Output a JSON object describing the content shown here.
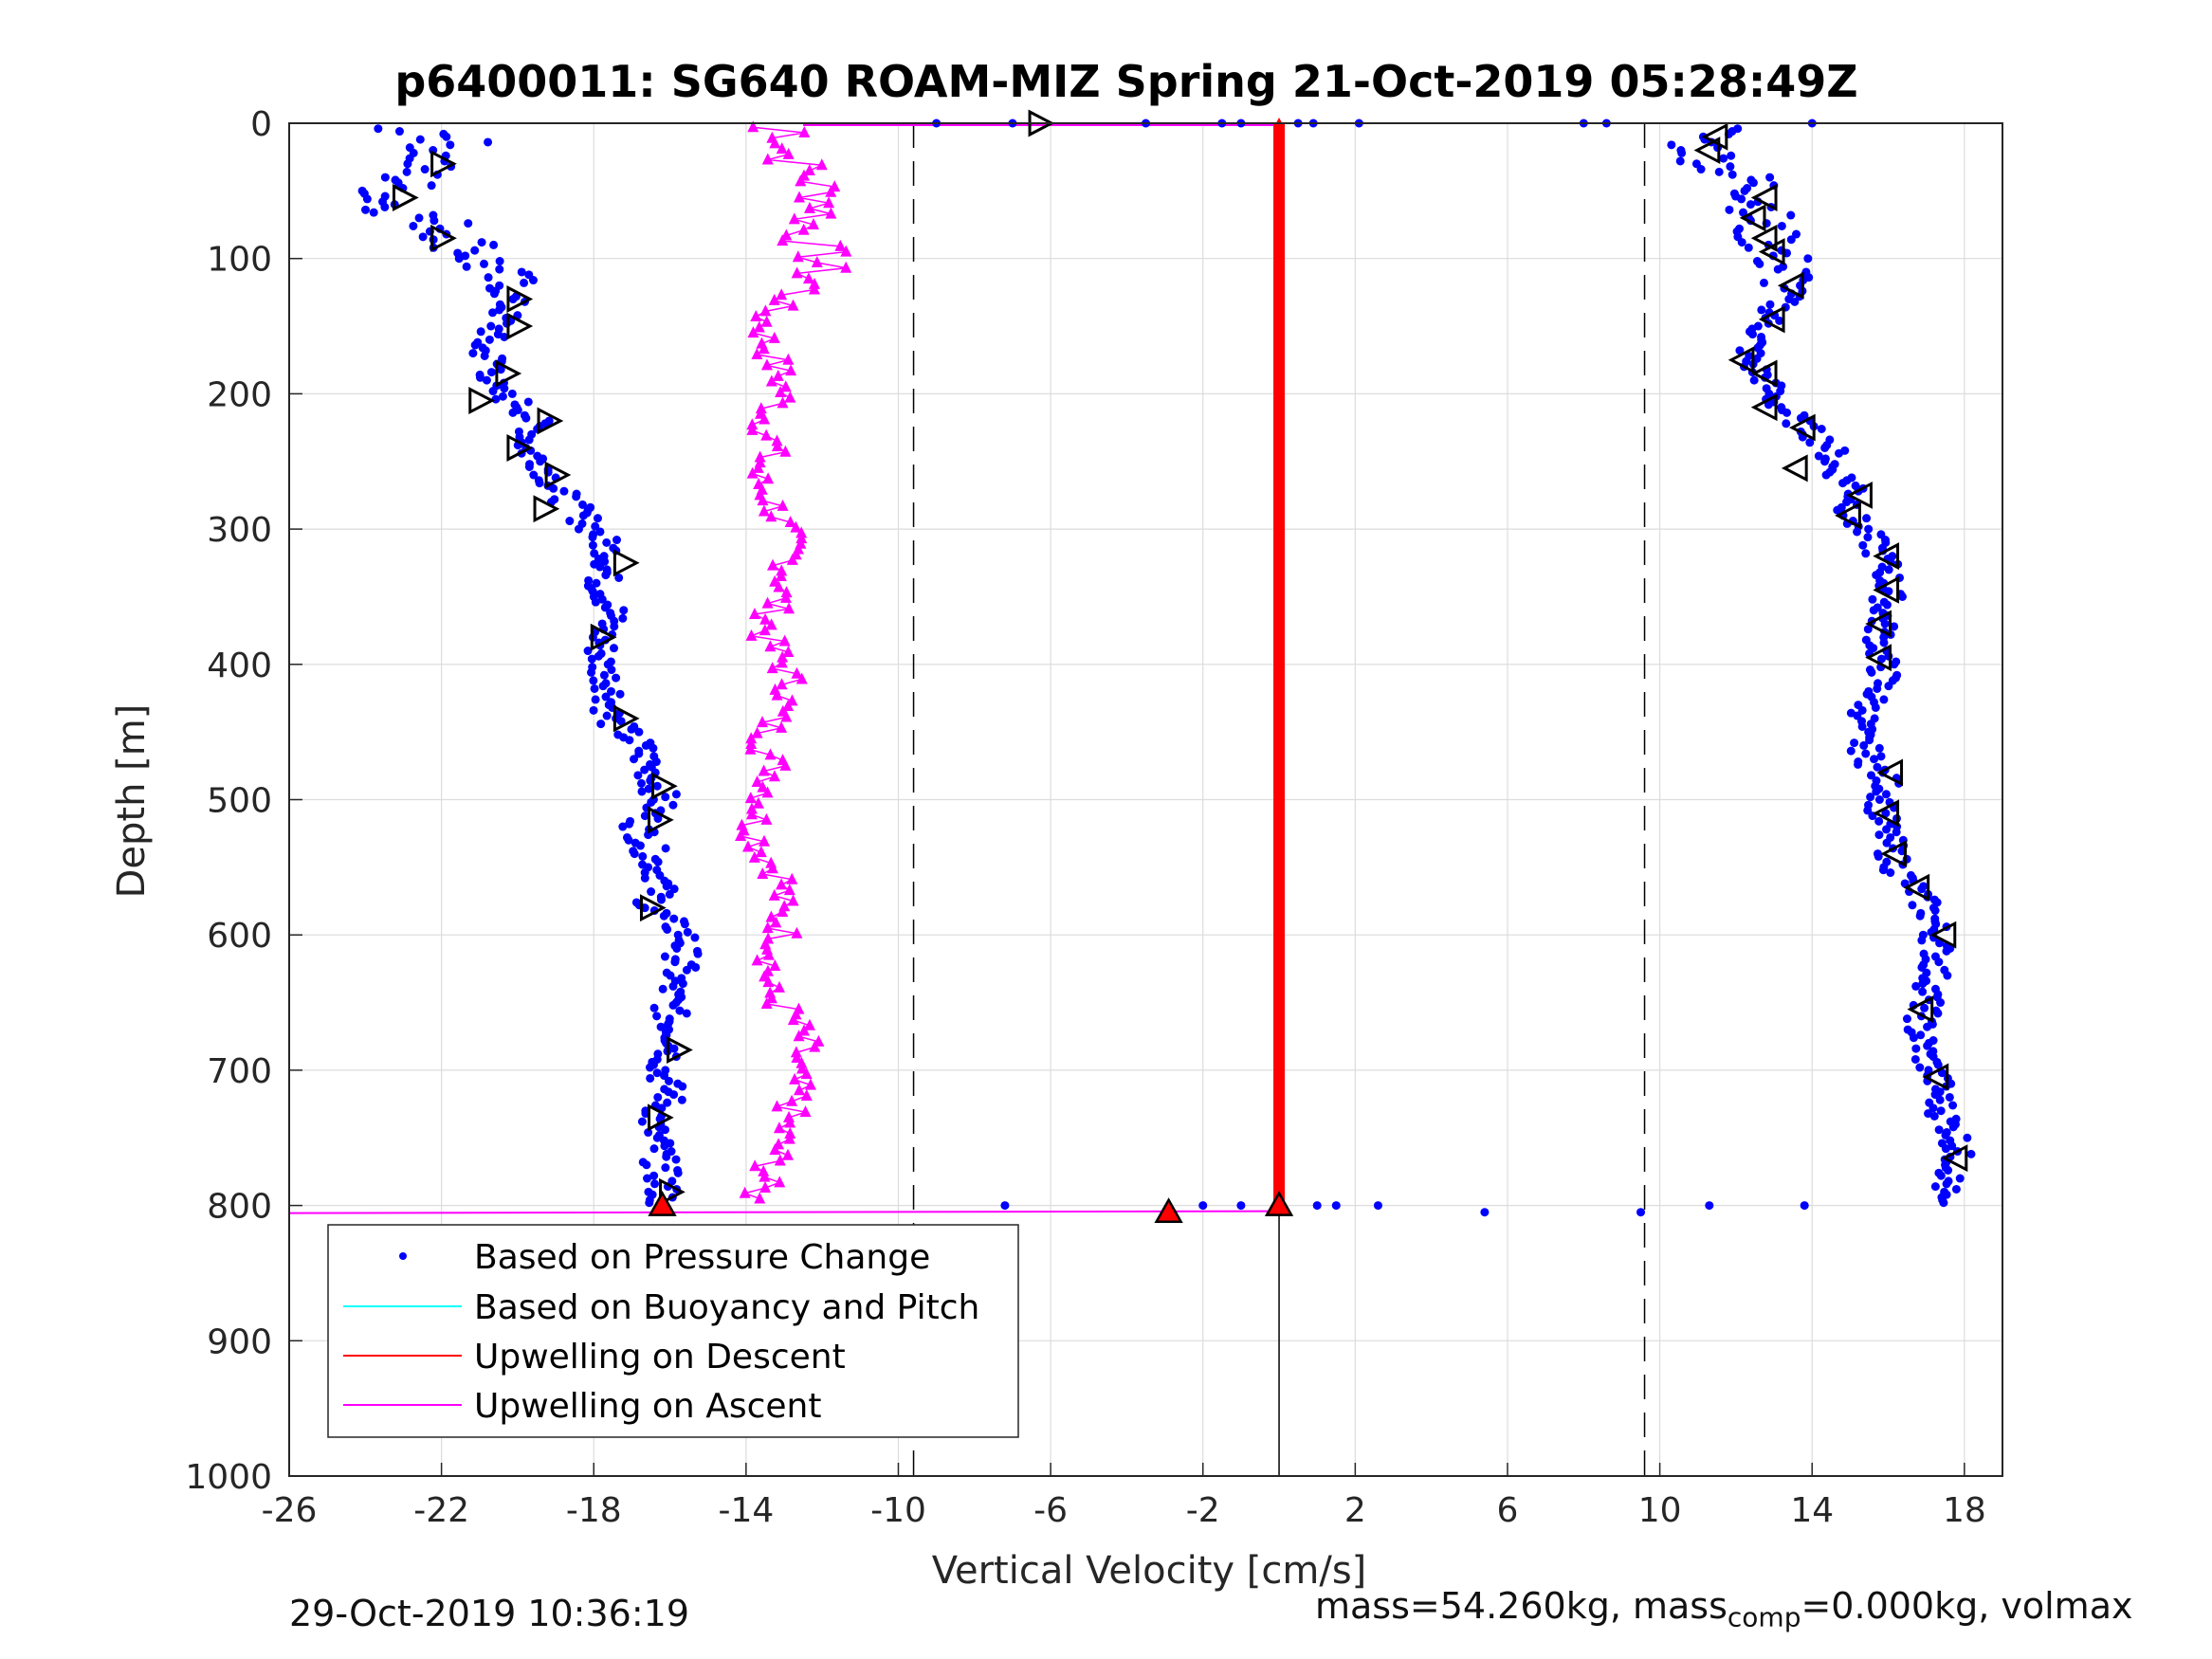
{
  "chart_data": {
    "type": "scatter",
    "title": "p6400011: SG640 ROAM-MIZ Spring 21-Oct-2019 05:28:49Z",
    "xlabel": "Vertical Velocity [cm/s]",
    "ylabel": "Depth [m]",
    "xlim": [
      -26,
      19
    ],
    "ylim": [
      0,
      1000
    ],
    "y_reversed": true,
    "grid": true,
    "x_tick_values": [
      -26,
      -22,
      -18,
      -14,
      -10,
      -6,
      -2,
      2,
      6,
      10,
      14,
      18
    ],
    "x_ticks": [
      "-26",
      "-22",
      "-18",
      "-14",
      "-10",
      "-6",
      "-2",
      "2",
      "6",
      "10",
      "14",
      "18"
    ],
    "y_tick_values": [
      0,
      100,
      200,
      300,
      400,
      500,
      600,
      700,
      800,
      900,
      1000
    ],
    "y_ticks": [
      "0",
      "100",
      "200",
      "300",
      "400",
      "500",
      "600",
      "700",
      "800",
      "900",
      "1000"
    ],
    "reference_lines": {
      "dashed_x": [
        -9.6,
        9.6
      ],
      "solid_zero": {
        "x": 0,
        "depth_from": 800,
        "depth_to": 1000
      }
    },
    "legend": {
      "position": "bottom-left",
      "entries": [
        {
          "label": "Based on Pressure Change",
          "color": "#0000ff",
          "style": "dot"
        },
        {
          "label": "Based on Buoyancy and Pitch",
          "color": "#00ffff",
          "style": "line"
        },
        {
          "label": "Upwelling on Descent",
          "color": "#ff0000",
          "style": "line"
        },
        {
          "label": "Upwelling on Ascent",
          "color": "#ff00ff",
          "style": "line"
        }
      ]
    },
    "series": [
      {
        "name": "Based on Pressure Change",
        "color": "#0000ff",
        "descent_profile": [
          {
            "depth": 2,
            "velocity": -23.5
          },
          {
            "depth": 10,
            "velocity": -21.5
          },
          {
            "depth": 20,
            "velocity": -22.0
          },
          {
            "depth": 30,
            "velocity": -22.5
          },
          {
            "depth": 45,
            "velocity": -23.0
          },
          {
            "depth": 55,
            "velocity": -23.5
          },
          {
            "depth": 65,
            "velocity": -23.0
          },
          {
            "depth": 75,
            "velocity": -22.0
          },
          {
            "depth": 85,
            "velocity": -21.5
          },
          {
            "depth": 100,
            "velocity": -21.0
          },
          {
            "depth": 115,
            "velocity": -20.5
          },
          {
            "depth": 130,
            "velocity": -20.2
          },
          {
            "depth": 150,
            "velocity": -20.5
          },
          {
            "depth": 165,
            "velocity": -21.0
          },
          {
            "depth": 180,
            "velocity": -20.5
          },
          {
            "depth": 195,
            "velocity": -20.8
          },
          {
            "depth": 210,
            "velocity": -19.8
          },
          {
            "depth": 225,
            "velocity": -19.5
          },
          {
            "depth": 240,
            "velocity": -19.8
          },
          {
            "depth": 255,
            "velocity": -19.2
          },
          {
            "depth": 270,
            "velocity": -19.0
          },
          {
            "depth": 285,
            "velocity": -18.5
          },
          {
            "depth": 300,
            "velocity": -18.0
          },
          {
            "depth": 320,
            "velocity": -17.5
          },
          {
            "depth": 340,
            "velocity": -17.8
          },
          {
            "depth": 360,
            "velocity": -17.5
          },
          {
            "depth": 380,
            "velocity": -17.8
          },
          {
            "depth": 400,
            "velocity": -17.8
          },
          {
            "depth": 420,
            "velocity": -17.5
          },
          {
            "depth": 440,
            "velocity": -17.6
          },
          {
            "depth": 460,
            "velocity": -16.8
          },
          {
            "depth": 480,
            "velocity": -16.5
          },
          {
            "depth": 500,
            "velocity": -16.2
          },
          {
            "depth": 520,
            "velocity": -16.8
          },
          {
            "depth": 540,
            "velocity": -16.5
          },
          {
            "depth": 560,
            "velocity": -16.2
          },
          {
            "depth": 580,
            "velocity": -16.5
          },
          {
            "depth": 600,
            "velocity": -15.6
          },
          {
            "depth": 620,
            "velocity": -15.7
          },
          {
            "depth": 640,
            "velocity": -16.0
          },
          {
            "depth": 660,
            "velocity": -16.0
          },
          {
            "depth": 680,
            "velocity": -15.8
          },
          {
            "depth": 700,
            "velocity": -16.2
          },
          {
            "depth": 720,
            "velocity": -16.0
          },
          {
            "depth": 740,
            "velocity": -16.5
          },
          {
            "depth": 760,
            "velocity": -16.3
          },
          {
            "depth": 780,
            "velocity": -16.2
          },
          {
            "depth": 800,
            "velocity": -16.2
          }
        ],
        "ascent_profile": [
          {
            "depth": 2,
            "velocity": 11.5
          },
          {
            "depth": 15,
            "velocity": 11.0
          },
          {
            "depth": 30,
            "velocity": 11.5
          },
          {
            "depth": 45,
            "velocity": 12.5
          },
          {
            "depth": 60,
            "velocity": 12.8
          },
          {
            "depth": 75,
            "velocity": 12.5
          },
          {
            "depth": 90,
            "velocity": 13.0
          },
          {
            "depth": 105,
            "velocity": 13.2
          },
          {
            "depth": 120,
            "velocity": 13.5
          },
          {
            "depth": 140,
            "velocity": 13.0
          },
          {
            "depth": 160,
            "velocity": 12.5
          },
          {
            "depth": 175,
            "velocity": 12.3
          },
          {
            "depth": 190,
            "velocity": 12.8
          },
          {
            "depth": 205,
            "velocity": 13.0
          },
          {
            "depth": 220,
            "velocity": 13.6
          },
          {
            "depth": 240,
            "velocity": 14.5
          },
          {
            "depth": 255,
            "velocity": 14.5
          },
          {
            "depth": 270,
            "velocity": 15.2
          },
          {
            "depth": 290,
            "velocity": 15.0
          },
          {
            "depth": 310,
            "velocity": 15.6
          },
          {
            "depth": 330,
            "velocity": 16.0
          },
          {
            "depth": 350,
            "velocity": 16.0
          },
          {
            "depth": 370,
            "velocity": 15.8
          },
          {
            "depth": 390,
            "velocity": 15.8
          },
          {
            "depth": 410,
            "velocity": 15.9
          },
          {
            "depth": 430,
            "velocity": 15.5
          },
          {
            "depth": 450,
            "velocity": 15.2
          },
          {
            "depth": 470,
            "velocity": 15.5
          },
          {
            "depth": 490,
            "velocity": 16.0
          },
          {
            "depth": 510,
            "velocity": 15.8
          },
          {
            "depth": 530,
            "velocity": 16.0
          },
          {
            "depth": 550,
            "velocity": 16.2
          },
          {
            "depth": 570,
            "velocity": 16.8
          },
          {
            "depth": 590,
            "velocity": 17.2
          },
          {
            "depth": 610,
            "velocity": 17.3
          },
          {
            "depth": 630,
            "velocity": 17.2
          },
          {
            "depth": 650,
            "velocity": 17.0
          },
          {
            "depth": 670,
            "velocity": 16.8
          },
          {
            "depth": 690,
            "velocity": 17.0
          },
          {
            "depth": 710,
            "velocity": 17.3
          },
          {
            "depth": 730,
            "velocity": 17.4
          },
          {
            "depth": 750,
            "velocity": 17.8
          },
          {
            "depth": 770,
            "velocity": 17.8
          },
          {
            "depth": 790,
            "velocity": 17.4
          },
          {
            "depth": 800,
            "velocity": 17.0
          }
        ],
        "outliers": [
          {
            "depth": 0,
            "velocity": -9.0
          },
          {
            "depth": 0,
            "velocity": -7.0
          },
          {
            "depth": 0,
            "velocity": -3.5
          },
          {
            "depth": 0,
            "velocity": -1.5
          },
          {
            "depth": 0,
            "velocity": -1.0
          },
          {
            "depth": 0,
            "velocity": 0.5
          },
          {
            "depth": 0,
            "velocity": 0.9
          },
          {
            "depth": 0,
            "velocity": 2.1
          },
          {
            "depth": 0,
            "velocity": 8.0
          },
          {
            "depth": 0,
            "velocity": 8.6
          },
          {
            "depth": 0,
            "velocity": 14.0
          },
          {
            "depth": 800,
            "velocity": -7.2
          },
          {
            "depth": 800,
            "velocity": -2.0
          },
          {
            "depth": 800,
            "velocity": -1.0
          },
          {
            "depth": 800,
            "velocity": 1.0
          },
          {
            "depth": 800,
            "velocity": 1.5
          },
          {
            "depth": 800,
            "velocity": 2.6
          },
          {
            "depth": 805,
            "velocity": 5.4
          },
          {
            "depth": 805,
            "velocity": 9.5
          },
          {
            "depth": 800,
            "velocity": 11.3
          },
          {
            "depth": 800,
            "velocity": 13.8
          }
        ]
      },
      {
        "name": "Upwelling on Descent",
        "color": "#ff0000",
        "profile": [
          {
            "depth": 0,
            "velocity": 0.0
          },
          {
            "depth": 200,
            "velocity": 0.0
          },
          {
            "depth": 400,
            "velocity": 0.0
          },
          {
            "depth": 600,
            "velocity": 0.0
          },
          {
            "depth": 800,
            "velocity": 0.0
          }
        ]
      },
      {
        "name": "Upwelling on Ascent",
        "color": "#ff00ff",
        "profile": [
          {
            "depth": 5,
            "velocity": -12.5
          },
          {
            "depth": 20,
            "velocity": -13.0
          },
          {
            "depth": 40,
            "velocity": -12.3
          },
          {
            "depth": 60,
            "velocity": -11.8
          },
          {
            "depth": 80,
            "velocity": -12.5
          },
          {
            "depth": 100,
            "velocity": -12.0
          },
          {
            "depth": 120,
            "velocity": -12.3
          },
          {
            "depth": 140,
            "velocity": -13.5
          },
          {
            "depth": 160,
            "velocity": -13.5
          },
          {
            "depth": 180,
            "velocity": -13.2
          },
          {
            "depth": 200,
            "velocity": -13.0
          },
          {
            "depth": 220,
            "velocity": -13.5
          },
          {
            "depth": 240,
            "velocity": -13.3
          },
          {
            "depth": 260,
            "velocity": -13.8
          },
          {
            "depth": 280,
            "velocity": -13.3
          },
          {
            "depth": 300,
            "velocity": -13.0
          },
          {
            "depth": 320,
            "velocity": -12.8
          },
          {
            "depth": 340,
            "velocity": -13.0
          },
          {
            "depth": 360,
            "velocity": -13.3
          },
          {
            "depth": 380,
            "velocity": -13.5
          },
          {
            "depth": 400,
            "velocity": -13.0
          },
          {
            "depth": 420,
            "velocity": -12.8
          },
          {
            "depth": 440,
            "velocity": -13.3
          },
          {
            "depth": 460,
            "velocity": -13.5
          },
          {
            "depth": 480,
            "velocity": -13.2
          },
          {
            "depth": 500,
            "velocity": -13.5
          },
          {
            "depth": 520,
            "velocity": -13.8
          },
          {
            "depth": 540,
            "velocity": -13.5
          },
          {
            "depth": 560,
            "velocity": -13.0
          },
          {
            "depth": 580,
            "velocity": -13.2
          },
          {
            "depth": 600,
            "velocity": -13.0
          },
          {
            "depth": 620,
            "velocity": -13.3
          },
          {
            "depth": 640,
            "velocity": -13.5
          },
          {
            "depth": 660,
            "velocity": -12.8
          },
          {
            "depth": 680,
            "velocity": -12.5
          },
          {
            "depth": 700,
            "velocity": -12.8
          },
          {
            "depth": 720,
            "velocity": -12.7
          },
          {
            "depth": 740,
            "velocity": -13.0
          },
          {
            "depth": 760,
            "velocity": -13.2
          },
          {
            "depth": 780,
            "velocity": -13.5
          },
          {
            "depth": 795,
            "velocity": -13.8
          }
        ],
        "surface_excursion": {
          "depth": 0,
          "velocity_from": -12.5,
          "velocity_to": 0.0
        },
        "bottom_excursion": {
          "depth": 800,
          "velocity_from": -26.0,
          "velocity_to": 0.0
        }
      }
    ],
    "markers": {
      "descent_triangles": [
        {
          "depth": 30,
          "velocity": -22.0
        },
        {
          "depth": 55,
          "velocity": -23.0
        },
        {
          "depth": 85,
          "velocity": -22.0
        },
        {
          "depth": 130,
          "velocity": -20.0
        },
        {
          "depth": 150,
          "velocity": -20.0
        },
        {
          "depth": 185,
          "velocity": -20.3
        },
        {
          "depth": 205,
          "velocity": -21.0
        },
        {
          "depth": 220,
          "velocity": -19.2
        },
        {
          "depth": 240,
          "velocity": -20.0
        },
        {
          "depth": 260,
          "velocity": -19.0
        },
        {
          "depth": 285,
          "velocity": -19.3
        },
        {
          "depth": 325,
          "velocity": -17.2
        },
        {
          "depth": 380,
          "velocity": -17.8
        },
        {
          "depth": 440,
          "velocity": -17.2
        },
        {
          "depth": 490,
          "velocity": -16.2
        },
        {
          "depth": 515,
          "velocity": -16.3
        },
        {
          "depth": 580,
          "velocity": -16.5
        },
        {
          "depth": 685,
          "velocity": -15.8
        },
        {
          "depth": 735,
          "velocity": -16.3
        },
        {
          "depth": 790,
          "velocity": -16.0
        },
        {
          "depth": 0,
          "velocity": -6.3
        }
      ],
      "ascent_triangles": [
        {
          "depth": 10,
          "velocity": 11.5
        },
        {
          "depth": 20,
          "velocity": 11.3
        },
        {
          "depth": 55,
          "velocity": 12.8
        },
        {
          "depth": 70,
          "velocity": 12.5
        },
        {
          "depth": 85,
          "velocity": 12.8
        },
        {
          "depth": 95,
          "velocity": 13.0
        },
        {
          "depth": 120,
          "velocity": 13.5
        },
        {
          "depth": 145,
          "velocity": 13.0
        },
        {
          "depth": 175,
          "velocity": 12.2
        },
        {
          "depth": 185,
          "velocity": 12.8
        },
        {
          "depth": 210,
          "velocity": 12.8
        },
        {
          "depth": 225,
          "velocity": 13.8
        },
        {
          "depth": 255,
          "velocity": 13.6
        },
        {
          "depth": 275,
          "velocity": 15.3
        },
        {
          "depth": 290,
          "velocity": 15.0
        },
        {
          "depth": 320,
          "velocity": 16.0
        },
        {
          "depth": 345,
          "velocity": 16.0
        },
        {
          "depth": 370,
          "velocity": 15.8
        },
        {
          "depth": 395,
          "velocity": 15.8
        },
        {
          "depth": 480,
          "velocity": 16.1
        },
        {
          "depth": 510,
          "velocity": 16.0
        },
        {
          "depth": 540,
          "velocity": 16.2
        },
        {
          "depth": 565,
          "velocity": 16.8
        },
        {
          "depth": 600,
          "velocity": 17.5
        },
        {
          "depth": 655,
          "velocity": 16.9
        },
        {
          "depth": 705,
          "velocity": 17.3
        },
        {
          "depth": 765,
          "velocity": 17.8
        }
      ],
      "red_triangles": [
        {
          "depth": 800,
          "velocity": -16.2
        },
        {
          "depth": 805,
          "velocity": -2.9
        },
        {
          "depth": 800,
          "velocity": 0.0
        }
      ]
    }
  },
  "footer": {
    "timestamp": "29-Oct-2019 10:36:19",
    "mass_text": "mass=54.260kg, mass",
    "mass_sub": "comp",
    "mass_tail": "=0.000kg, volmax"
  }
}
